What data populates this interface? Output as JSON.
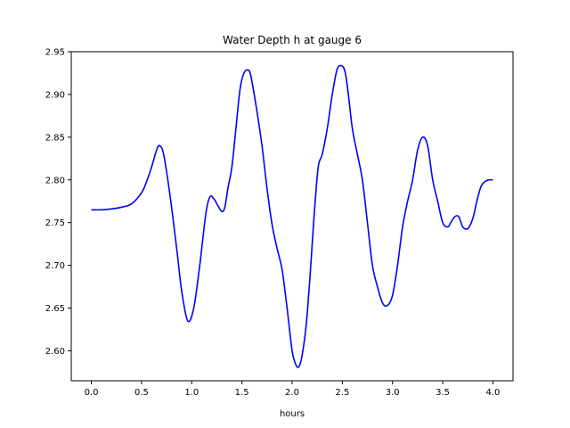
{
  "chart_data": {
    "type": "line",
    "title": "Water Depth h at gauge 6",
    "xlabel": "hours",
    "ylabel": "",
    "xlim": [
      -0.2,
      4.2
    ],
    "ylim": [
      2.565,
      2.95
    ],
    "grid": false,
    "legend": "none",
    "x_ticks": [
      0.0,
      0.5,
      1.0,
      1.5,
      2.0,
      2.5,
      3.0,
      3.5,
      4.0
    ],
    "x_tick_labels": [
      "0.0",
      "0.5",
      "1.0",
      "1.5",
      "2.0",
      "2.5",
      "3.0",
      "3.5",
      "4.0"
    ],
    "y_ticks": [
      2.6,
      2.65,
      2.7,
      2.75,
      2.8,
      2.85,
      2.9,
      2.95
    ],
    "y_tick_labels": [
      "2.60",
      "2.65",
      "2.70",
      "2.75",
      "2.80",
      "2.85",
      "2.90",
      "2.95"
    ],
    "series": [
      {
        "color": "#0000ff",
        "x": [
          0.0,
          0.1,
          0.2,
          0.3,
          0.4,
          0.5,
          0.55,
          0.6,
          0.65,
          0.68,
          0.72,
          0.78,
          0.85,
          0.9,
          0.96,
          1.02,
          1.08,
          1.14,
          1.18,
          1.22,
          1.26,
          1.3,
          1.33,
          1.36,
          1.4,
          1.44,
          1.48,
          1.52,
          1.57,
          1.6,
          1.65,
          1.7,
          1.75,
          1.8,
          1.85,
          1.9,
          1.95,
          2.0,
          2.04,
          2.07,
          2.1,
          2.14,
          2.18,
          2.22,
          2.26,
          2.3,
          2.35,
          2.4,
          2.45,
          2.5,
          2.53,
          2.56,
          2.6,
          2.65,
          2.7,
          2.75,
          2.8,
          2.85,
          2.9,
          2.95,
          3.0,
          3.05,
          3.1,
          3.15,
          3.2,
          3.25,
          3.3,
          3.35,
          3.4,
          3.45,
          3.5,
          3.55,
          3.58,
          3.62,
          3.66,
          3.7,
          3.75,
          3.8,
          3.84,
          3.88,
          3.92,
          3.96,
          4.0
        ],
        "y": [
          2.765,
          2.765,
          2.766,
          2.768,
          2.772,
          2.785,
          2.798,
          2.815,
          2.835,
          2.84,
          2.83,
          2.785,
          2.72,
          2.67,
          2.635,
          2.65,
          2.7,
          2.76,
          2.78,
          2.778,
          2.77,
          2.763,
          2.768,
          2.79,
          2.815,
          2.86,
          2.905,
          2.925,
          2.928,
          2.915,
          2.88,
          2.84,
          2.79,
          2.748,
          2.72,
          2.695,
          2.65,
          2.6,
          2.583,
          2.582,
          2.595,
          2.63,
          2.69,
          2.76,
          2.815,
          2.83,
          2.86,
          2.9,
          2.93,
          2.933,
          2.925,
          2.9,
          2.86,
          2.83,
          2.8,
          2.75,
          2.7,
          2.675,
          2.656,
          2.653,
          2.665,
          2.7,
          2.745,
          2.775,
          2.8,
          2.835,
          2.85,
          2.84,
          2.8,
          2.775,
          2.75,
          2.745,
          2.75,
          2.757,
          2.757,
          2.745,
          2.743,
          2.755,
          2.775,
          2.792,
          2.798,
          2.8,
          2.8
        ]
      }
    ]
  }
}
